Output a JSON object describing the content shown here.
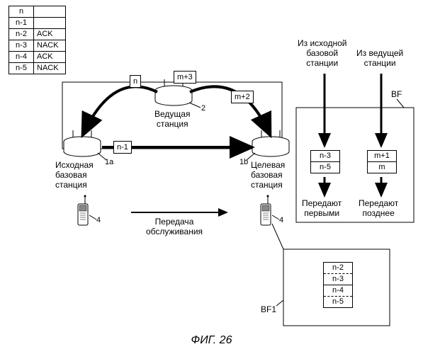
{
  "ack_table": [
    {
      "pkt": "n",
      "status": ""
    },
    {
      "pkt": "n-1",
      "status": ""
    },
    {
      "pkt": "n-2",
      "status": "ACK"
    },
    {
      "pkt": "n-3",
      "status": "NACK"
    },
    {
      "pkt": "n-4",
      "status": "ACK"
    },
    {
      "pkt": "n-5",
      "status": "NACK"
    }
  ],
  "pkt_n": "n",
  "pkt_m3": "m+3",
  "pkt_m2": "m+2",
  "pkt_n1": "n-1",
  "leading_station": "Ведущая\nстанция",
  "source_bs": "Исходная\nбазовая\nстанция",
  "target_bs": "Целевая\nбазовая\nстанция",
  "handover": "Передача\nобслуживания",
  "from_source": "Из исходной\nбазовой\nстанции",
  "from_leading": "Из ведущей\nстанции",
  "tx_first": "Передают\nпервыми",
  "tx_later": "Передают\nпозднее",
  "id_lead": "2",
  "id_src": "1a",
  "id_tgt": "1b",
  "id_ue": "4",
  "bf_label": "BF",
  "bf_src": [
    "n-3",
    "n-5"
  ],
  "bf_lead": [
    "m+1",
    "m"
  ],
  "bf1_label": "BF1",
  "bf1": [
    "n-2",
    "n-3",
    "n-4",
    "n-5"
  ],
  "fig": "ФИГ. 26",
  "colors": {
    "stroke": "#000000",
    "fill": "#ffffff"
  }
}
